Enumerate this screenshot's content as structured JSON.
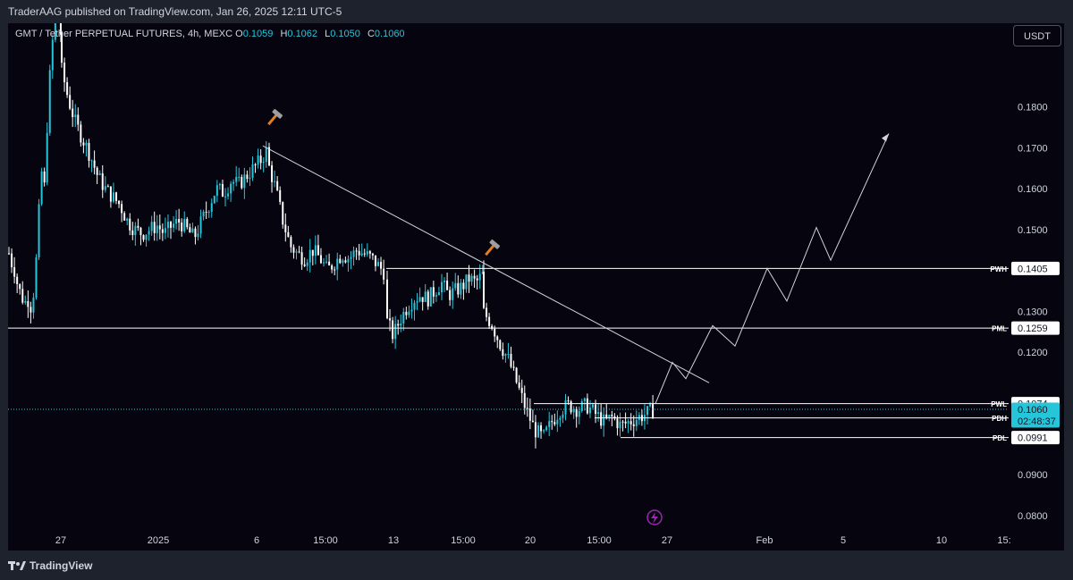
{
  "header": {
    "published_text": "TraderAAG published on TradingView.com, Jan 26, 2025 12:11 UTC-5"
  },
  "legend": {
    "symbol_text": "GMT / Tether PERPETUAL FUTURES, 4h, MEXC",
    "open_key": "O",
    "open_val": "0.1059",
    "high_key": "H",
    "high_val": "0.1062",
    "low_key": "L",
    "low_val": "0.1050",
    "close_key": "C",
    "close_val": "0.1060"
  },
  "toolbar": {
    "currency_label": "USDT"
  },
  "footer": {
    "brand": "TradingView"
  },
  "colors": {
    "up": "#26c6da",
    "down": "#ffffff",
    "background": "#06050f",
    "panel": "#1e222d",
    "last_price_bg": "#26c6da",
    "level_line": "#ffffff",
    "lightning": "#9c27b0"
  },
  "chart_data": {
    "type": "candlestick",
    "symbol": "GMT / Tether PERPETUAL FUTURES",
    "interval": "4h",
    "exchange": "MEXC",
    "ylim": [
      0.0767,
      0.2005
    ],
    "y_ticks": [
      "0.1800",
      "0.1700",
      "0.1600",
      "0.1500",
      "0.1300",
      "0.1200",
      "0.0900",
      "0.0800"
    ],
    "x_ticks": [
      "27",
      "2025",
      "6",
      "15:00",
      "13",
      "15:00",
      "20",
      "15:00",
      "27",
      "Feb",
      "5",
      "10",
      "15:"
    ],
    "price_path": [
      [
        0.145,
        0.142,
        0.14,
        0.136,
        0.134,
        0.132,
        0.133,
        0.131,
        0.136,
        0.148,
        0.165,
        0.16,
        0.178,
        0.192,
        0.2,
        0.205,
        0.198
      ],
      [
        0.19,
        0.182,
        0.176,
        0.172,
        0.168,
        0.163,
        0.16,
        0.158,
        0.156,
        0.152,
        0.15,
        0.149,
        0.15,
        0.151,
        0.149,
        0.151,
        0.152,
        0.15,
        0.148,
        0.152,
        0.156,
        0.16,
        0.159,
        0.162,
        0.161,
        0.163,
        0.165,
        0.167,
        0.17
      ],
      [
        0.166,
        0.16,
        0.152,
        0.146,
        0.144,
        0.143,
        0.145,
        0.143,
        0.14,
        0.142,
        0.144,
        0.143,
        0.145,
        0.144,
        0.143,
        0.141,
        0.139
      ],
      [
        0.128,
        0.124,
        0.128,
        0.131,
        0.133,
        0.134,
        0.133,
        0.135,
        0.137,
        0.134,
        0.135,
        0.136,
        0.138,
        0.137,
        0.139
      ],
      [
        0.13,
        0.127,
        0.122,
        0.118,
        0.112,
        0.106,
        0.101,
        0.099,
        0.103,
        0.106,
        0.107,
        0.106,
        0.107,
        0.105,
        0.103,
        0.104,
        0.102,
        0.103,
        0.104,
        0.105,
        0.106
      ]
    ],
    "levels": [
      {
        "label": "PWH",
        "price": "0.1405",
        "value": 0.1405
      },
      {
        "label": "PML",
        "price": "0.1259",
        "value": 0.1259
      },
      {
        "label": "PWL",
        "price": "0.1074",
        "value": 0.1074
      },
      {
        "label": "PDH",
        "price": "0.1039",
        "value": 0.1039
      },
      {
        "label": "PDL",
        "price": "0.0991",
        "value": 0.0991
      }
    ],
    "last_price": {
      "price": "0.1060",
      "countdown": "02:48:37",
      "value": 0.106
    },
    "trendline": {
      "from": 0.1705,
      "to": 0.1125
    },
    "projection_path": [
      0.1074,
      0.1175,
      0.1135,
      0.1265,
      0.1215,
      0.1405,
      0.1325,
      0.1505,
      0.1425,
      0.1735
    ],
    "annotations": [
      {
        "type": "hammer",
        "name": "hammer-icon-left"
      },
      {
        "type": "hammer",
        "name": "hammer-icon-right"
      },
      {
        "type": "lightning",
        "name": "lightning-event-icon"
      }
    ]
  }
}
